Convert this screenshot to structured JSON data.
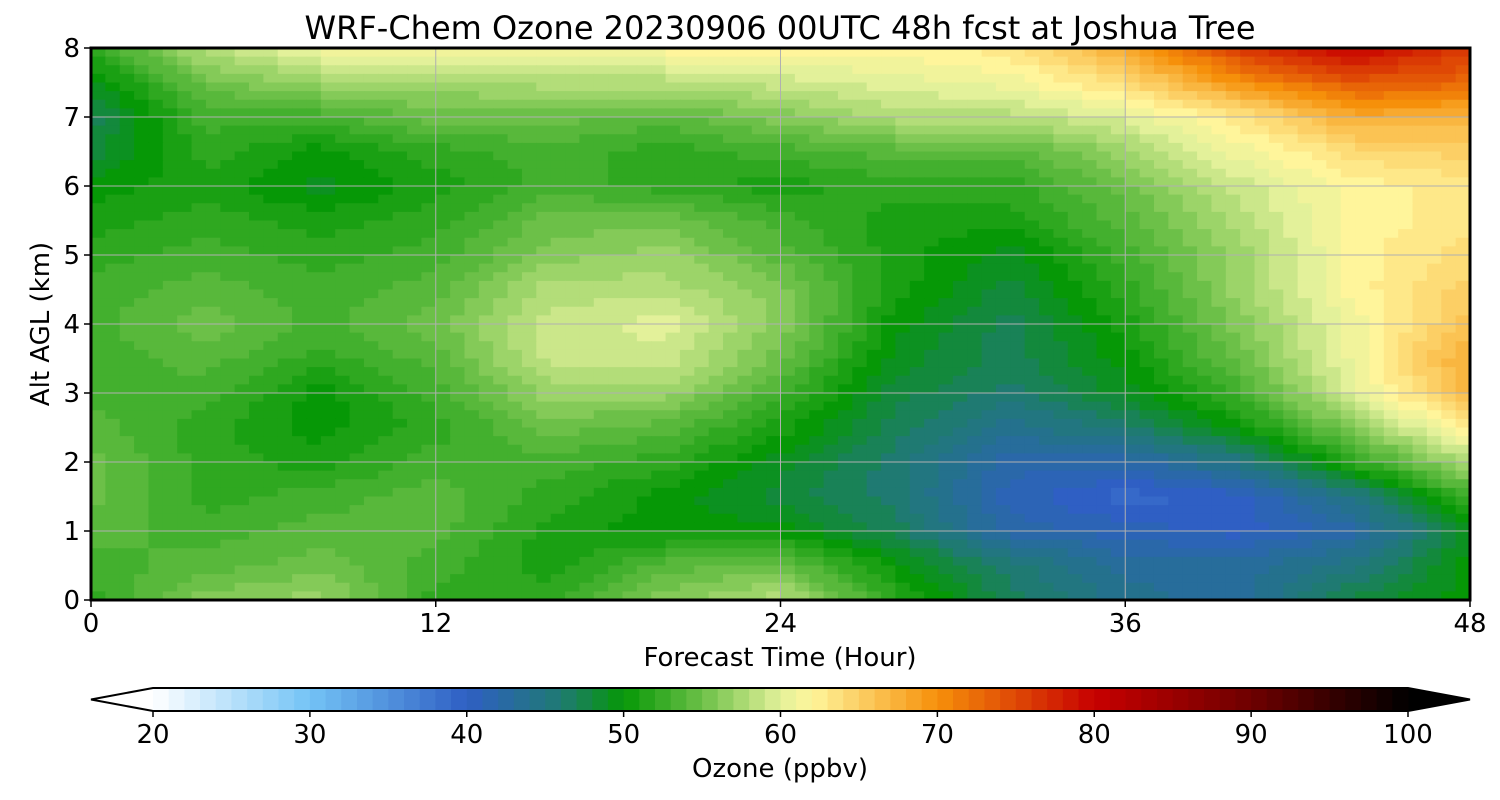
{
  "chart_data": {
    "type": "heatmap",
    "title": "WRF-Chem Ozone  20230906 00UTC 48h fcst at Joshua Tree",
    "xlabel": "Forecast Time (Hour)",
    "ylabel": "Alt AGL (km)",
    "xlim": [
      0,
      48
    ],
    "ylim": [
      0,
      8
    ],
    "x_ticks": [
      "0",
      "12",
      "24",
      "36",
      "48"
    ],
    "y_ticks": [
      "0",
      "1",
      "2",
      "3",
      "4",
      "5",
      "6",
      "7",
      "8"
    ],
    "grid": true,
    "colorbar": {
      "label": "Ozone  (ppbv)",
      "min": 20,
      "max": 100,
      "ticks": [
        "20",
        "30",
        "40",
        "50",
        "60",
        "70",
        "80",
        "90",
        "100"
      ],
      "extend": "both",
      "colors": [
        {
          "v": 20,
          "c": "#ffffff"
        },
        {
          "v": 30,
          "c": "#73c3f5"
        },
        {
          "v": 40,
          "c": "#2f5fc4"
        },
        {
          "v": 46,
          "c": "#1f7a72"
        },
        {
          "v": 50,
          "c": "#069806"
        },
        {
          "v": 55,
          "c": "#6cc048"
        },
        {
          "v": 60,
          "c": "#e3f19a"
        },
        {
          "v": 62,
          "c": "#fff59b"
        },
        {
          "v": 70,
          "c": "#f6900a"
        },
        {
          "v": 80,
          "c": "#c70000"
        },
        {
          "v": 90,
          "c": "#6e0000"
        },
        {
          "v": 100,
          "c": "#000000"
        }
      ]
    },
    "x": [
      0,
      4,
      8,
      12,
      16,
      20,
      24,
      28,
      32,
      36,
      40,
      44,
      48
    ],
    "y": [
      0,
      0.5,
      1,
      1.5,
      2,
      2.5,
      3,
      3.5,
      4,
      4.5,
      5,
      5.5,
      6,
      6.5,
      7,
      7.5,
      8
    ],
    "values": [
      [
        52,
        56,
        57,
        52,
        52,
        56,
        58,
        52,
        47,
        44,
        43,
        48,
        50
      ],
      [
        53,
        54,
        55,
        53,
        51,
        54,
        55,
        50,
        46,
        43,
        43,
        45,
        50
      ],
      [
        54,
        53,
        54,
        54,
        51,
        50,
        50,
        47,
        42,
        41,
        40,
        42,
        49
      ],
      [
        55,
        52,
        53,
        54,
        52,
        50,
        48,
        46,
        41,
        39,
        40,
        45,
        53
      ],
      [
        55,
        52,
        51,
        53,
        53,
        52,
        49,
        46,
        42,
        42,
        45,
        52,
        58
      ],
      [
        54,
        52,
        50,
        52,
        55,
        54,
        51,
        47,
        44,
        46,
        50,
        56,
        63
      ],
      [
        53,
        53,
        50,
        53,
        57,
        57,
        53,
        48,
        46,
        49,
        53,
        60,
        67
      ],
      [
        53,
        54,
        52,
        54,
        59,
        59,
        55,
        49,
        47,
        50,
        55,
        61,
        68
      ],
      [
        53,
        55,
        53,
        55,
        59,
        60,
        56,
        50,
        47,
        51,
        56,
        61,
        66
      ],
      [
        53,
        54,
        53,
        54,
        58,
        58,
        56,
        51,
        48,
        52,
        57,
        62,
        65
      ],
      [
        52,
        53,
        52,
        53,
        56,
        57,
        54,
        51,
        49,
        53,
        57,
        62,
        64
      ],
      [
        51,
        52,
        51,
        52,
        55,
        55,
        53,
        51,
        51,
        54,
        58,
        62,
        63
      ],
      [
        50,
        51,
        49,
        51,
        53,
        52,
        51,
        52,
        52,
        55,
        59,
        62,
        63
      ],
      [
        48,
        52,
        50,
        52,
        53,
        52,
        53,
        54,
        54,
        57,
        61,
        64,
        65
      ],
      [
        47,
        53,
        53,
        55,
        55,
        54,
        56,
        58,
        58,
        60,
        63,
        68,
        67
      ],
      [
        49,
        55,
        57,
        57,
        58,
        58,
        59,
        60,
        61,
        64,
        70,
        74,
        73
      ],
      [
        52,
        58,
        61,
        61,
        61,
        62,
        62,
        62,
        63,
        68,
        76,
        80,
        76
      ]
    ]
  }
}
